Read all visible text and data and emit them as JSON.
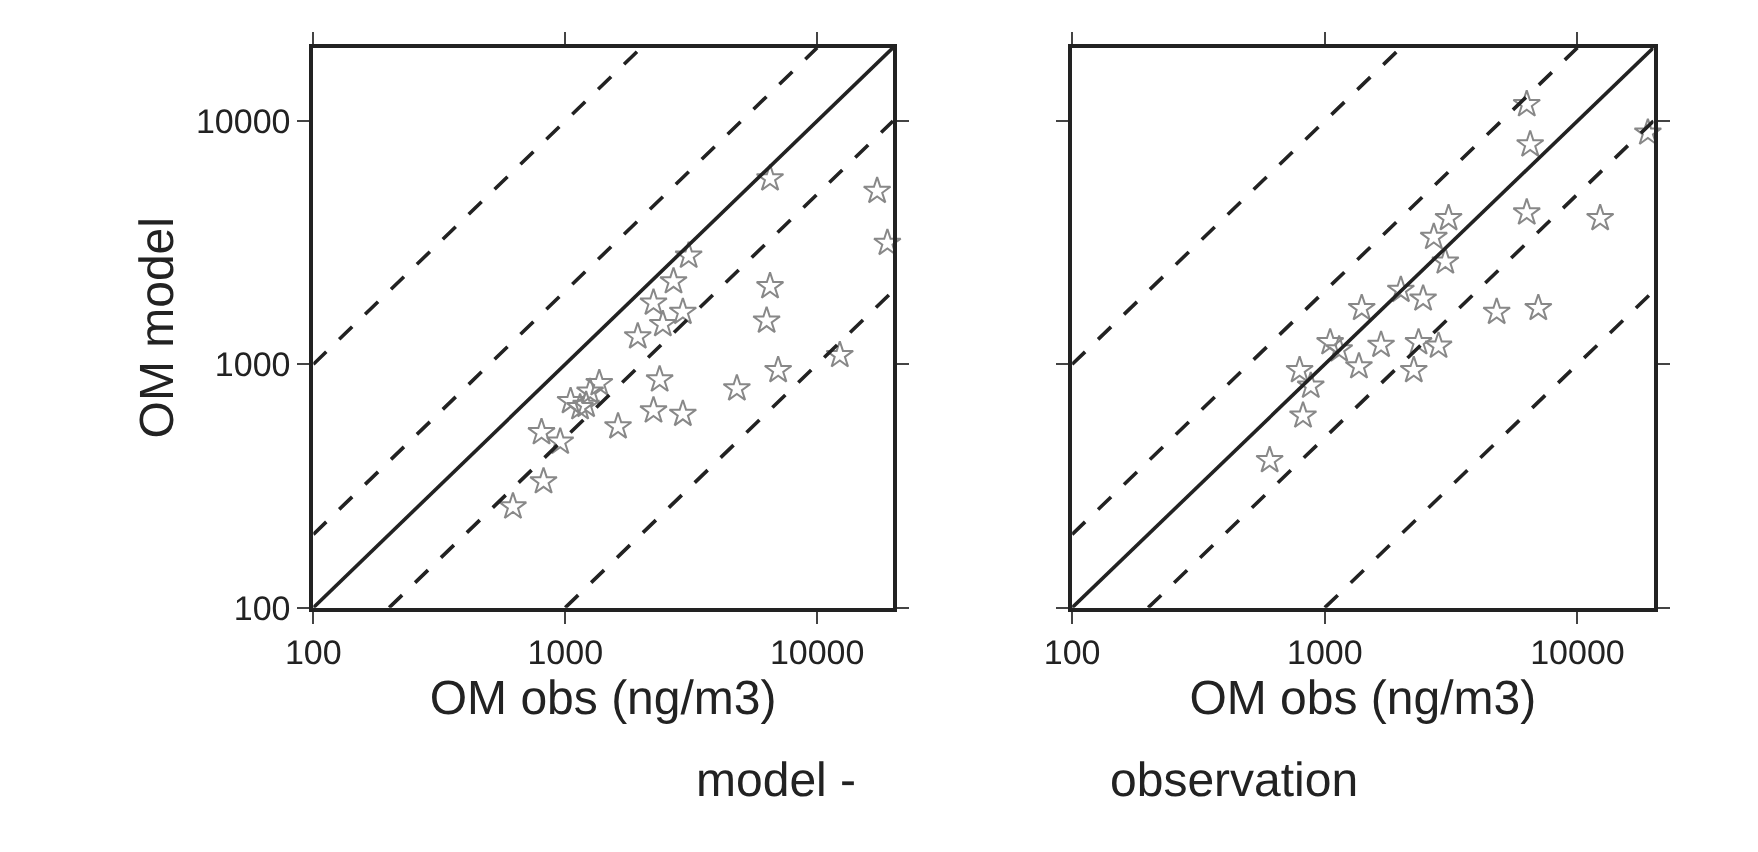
{
  "chart_data": [
    {
      "type": "scatter",
      "xlabel": "OM obs (ng/m3)",
      "ylabel": "OM model",
      "log": "xy",
      "xlim": [
        100,
        20000
      ],
      "ylim": [
        100,
        20000
      ],
      "xticks": [
        100,
        1000,
        10000
      ],
      "yticks": [
        100,
        1000,
        10000
      ],
      "annotations": [
        "model -"
      ],
      "series": [
        {
          "color": "#888888",
          "marker": "star",
          "x": [
            620,
            820,
            805,
            955,
            1050,
            1145,
            1255,
            1365,
            1210,
            1620,
            1940,
            2240,
            2370,
            2240,
            2930,
            2440,
            2930,
            2690,
            3090,
            4800,
            6300,
            6500,
            7000,
            6500,
            12300,
            17300,
            19000
          ],
          "values": [
            260,
            330,
            525,
            480,
            705,
            665,
            770,
            835,
            680,
            555,
            1300,
            1790,
            865,
            645,
            625,
            1460,
            1640,
            2190,
            2790,
            795,
            1510,
            2090,
            945,
            5800,
            1090,
            5150,
            3150
          ]
        },
        {
          "type": "line",
          "color": "#222222",
          "line_style": "solid",
          "x": [
            100,
            20000
          ],
          "values": [
            100,
            20000
          ]
        },
        {
          "type": "line",
          "color": "#222222",
          "line_style": "dashed",
          "x": [
            100,
            10000
          ],
          "values": [
            200,
            20000
          ]
        },
        {
          "type": "line",
          "color": "#222222",
          "line_style": "dashed",
          "x": [
            100,
            2000
          ],
          "values": [
            1000,
            20000
          ]
        },
        {
          "type": "line",
          "color": "#222222",
          "line_style": "dashed",
          "x": [
            200,
            20000
          ],
          "values": [
            100,
            10000
          ]
        },
        {
          "type": "line",
          "color": "#222222",
          "line_style": "dashed",
          "x": [
            1000,
            20000
          ],
          "values": [
            100,
            2000
          ]
        }
      ]
    },
    {
      "type": "scatter",
      "xlabel": "OM obs (ng/m3)",
      "log": "xy",
      "xlim": [
        100,
        20000
      ],
      "ylim": [
        100,
        20000
      ],
      "xticks": [
        100,
        1000,
        10000
      ],
      "yticks": [
        100,
        1000,
        10000
      ],
      "tick_labels": "x",
      "annotations": [
        "observation"
      ],
      "series": [
        {
          "color": "#888888",
          "marker": "star",
          "x": [
            605,
            820,
            880,
            795,
            1050,
            1140,
            1365,
            1670,
            1400,
            2000,
            2450,
            2250,
            2820,
            2350,
            3000,
            2700,
            3090,
            4790,
            7000,
            6300,
            6500,
            6300,
            12300,
            19000
          ],
          "values": [
            403,
            615,
            815,
            945,
            1230,
            1150,
            980,
            1200,
            1700,
            2020,
            1860,
            945,
            1190,
            1230,
            2640,
            3330,
            3980,
            1640,
            1700,
            4200,
            8000,
            11700,
            3980,
            8950
          ]
        },
        {
          "type": "line",
          "color": "#222222",
          "line_style": "solid",
          "x": [
            100,
            20000
          ],
          "values": [
            100,
            20000
          ]
        },
        {
          "type": "line",
          "color": "#222222",
          "line_style": "dashed",
          "x": [
            100,
            10000
          ],
          "values": [
            200,
            20000
          ]
        },
        {
          "type": "line",
          "color": "#222222",
          "line_style": "dashed",
          "x": [
            100,
            2000
          ],
          "values": [
            1000,
            20000
          ]
        },
        {
          "type": "line",
          "color": "#222222",
          "line_style": "dashed",
          "x": [
            200,
            20000
          ],
          "values": [
            100,
            10000
          ]
        },
        {
          "type": "line",
          "color": "#222222",
          "line_style": "dashed",
          "x": [
            1000,
            20000
          ],
          "values": [
            100,
            2000
          ]
        }
      ]
    }
  ]
}
